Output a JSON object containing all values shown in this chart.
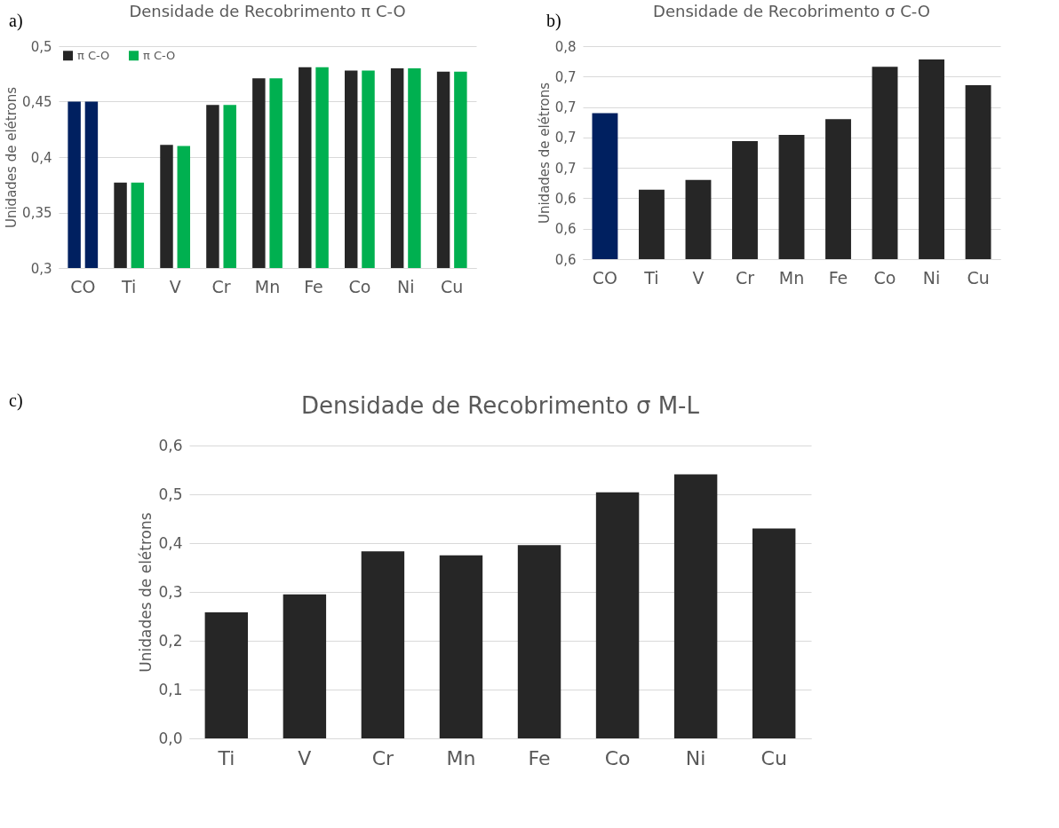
{
  "chart_data": [
    {
      "type": "bar",
      "title": "Densidade de Recobrimento π C-O",
      "ylabel": "Unidades de elétrons",
      "annotations": [
        "a)"
      ],
      "categories": [
        "CO",
        "Ti",
        "V",
        "Cr",
        "Mn",
        "Fe",
        "Co",
        "Ni",
        "Cu"
      ],
      "series": [
        {
          "name": "π C-O",
          "color": "#262626",
          "colors": [
            "#002060",
            "#262626",
            "#262626",
            "#262626",
            "#262626",
            "#262626",
            "#262626",
            "#262626",
            "#262626"
          ],
          "values": [
            0.45,
            0.377,
            0.411,
            0.447,
            0.471,
            0.481,
            0.478,
            0.48,
            0.477
          ]
        },
        {
          "name": "π C-O",
          "color": "#00b050",
          "colors": [
            "#002060",
            "#00b050",
            "#00b050",
            "#00b050",
            "#00b050",
            "#00b050",
            "#00b050",
            "#00b050",
            "#00b050"
          ],
          "values": [
            0.45,
            0.377,
            0.41,
            0.447,
            0.471,
            0.481,
            0.478,
            0.48,
            0.477
          ]
        }
      ],
      "ylim": [
        0.3,
        0.5
      ],
      "yticks": [
        {
          "value": 0.3,
          "label": "0,3"
        },
        {
          "value": 0.35,
          "label": "0,35"
        },
        {
          "value": 0.4,
          "label": "0,4"
        },
        {
          "value": 0.45,
          "label": "0,45"
        },
        {
          "value": 0.5,
          "label": "0,5"
        }
      ],
      "grid": "y",
      "legend": "top left"
    },
    {
      "type": "bar",
      "title": "Densidade de Recobrimento σ C-O",
      "ylabel": "Unidades de elétrons",
      "annotations": [
        "b)"
      ],
      "categories": [
        "CO",
        "Ti",
        "V",
        "Cr",
        "Mn",
        "Fe",
        "Co",
        "Ni",
        "Cu"
      ],
      "values": [
        0.7,
        0.637,
        0.645,
        0.677,
        0.682,
        0.695,
        0.738,
        0.744,
        0.723
      ],
      "colors": [
        "#002060",
        "#262626",
        "#262626",
        "#262626",
        "#262626",
        "#262626",
        "#262626",
        "#262626",
        "#262626"
      ],
      "ylim": [
        0.58,
        0.755
      ],
      "yticks": [
        {
          "value": 0.58,
          "label": "0,6"
        },
        {
          "value": 0.605,
          "label": "0,6"
        },
        {
          "value": 0.63,
          "label": "0,6"
        },
        {
          "value": 0.655,
          "label": "0,7"
        },
        {
          "value": 0.68,
          "label": "0,7"
        },
        {
          "value": 0.705,
          "label": "0,7"
        },
        {
          "value": 0.73,
          "label": "0,7"
        },
        {
          "value": 0.755,
          "label": "0,8"
        }
      ],
      "grid": "y"
    },
    {
      "type": "bar",
      "title": "Densidade de Recobrimento σ M-L",
      "ylabel": "Unidades de elétrons",
      "annotations": [
        "c)"
      ],
      "categories": [
        "Ti",
        "V",
        "Cr",
        "Mn",
        "Fe",
        "Co",
        "Ni",
        "Cu"
      ],
      "values": [
        0.258,
        0.295,
        0.383,
        0.375,
        0.396,
        0.504,
        0.541,
        0.43
      ],
      "color": "#262626",
      "ylim": [
        0,
        0.6
      ],
      "yticks": [
        {
          "value": 0,
          "label": "0,0"
        },
        {
          "value": 0.1,
          "label": "0,1"
        },
        {
          "value": 0.2,
          "label": "0,2"
        },
        {
          "value": 0.3,
          "label": "0,3"
        },
        {
          "value": 0.4,
          "label": "0,4"
        },
        {
          "value": 0.5,
          "label": "0,5"
        },
        {
          "value": 0.6,
          "label": "0,6"
        }
      ],
      "grid": "y"
    }
  ]
}
